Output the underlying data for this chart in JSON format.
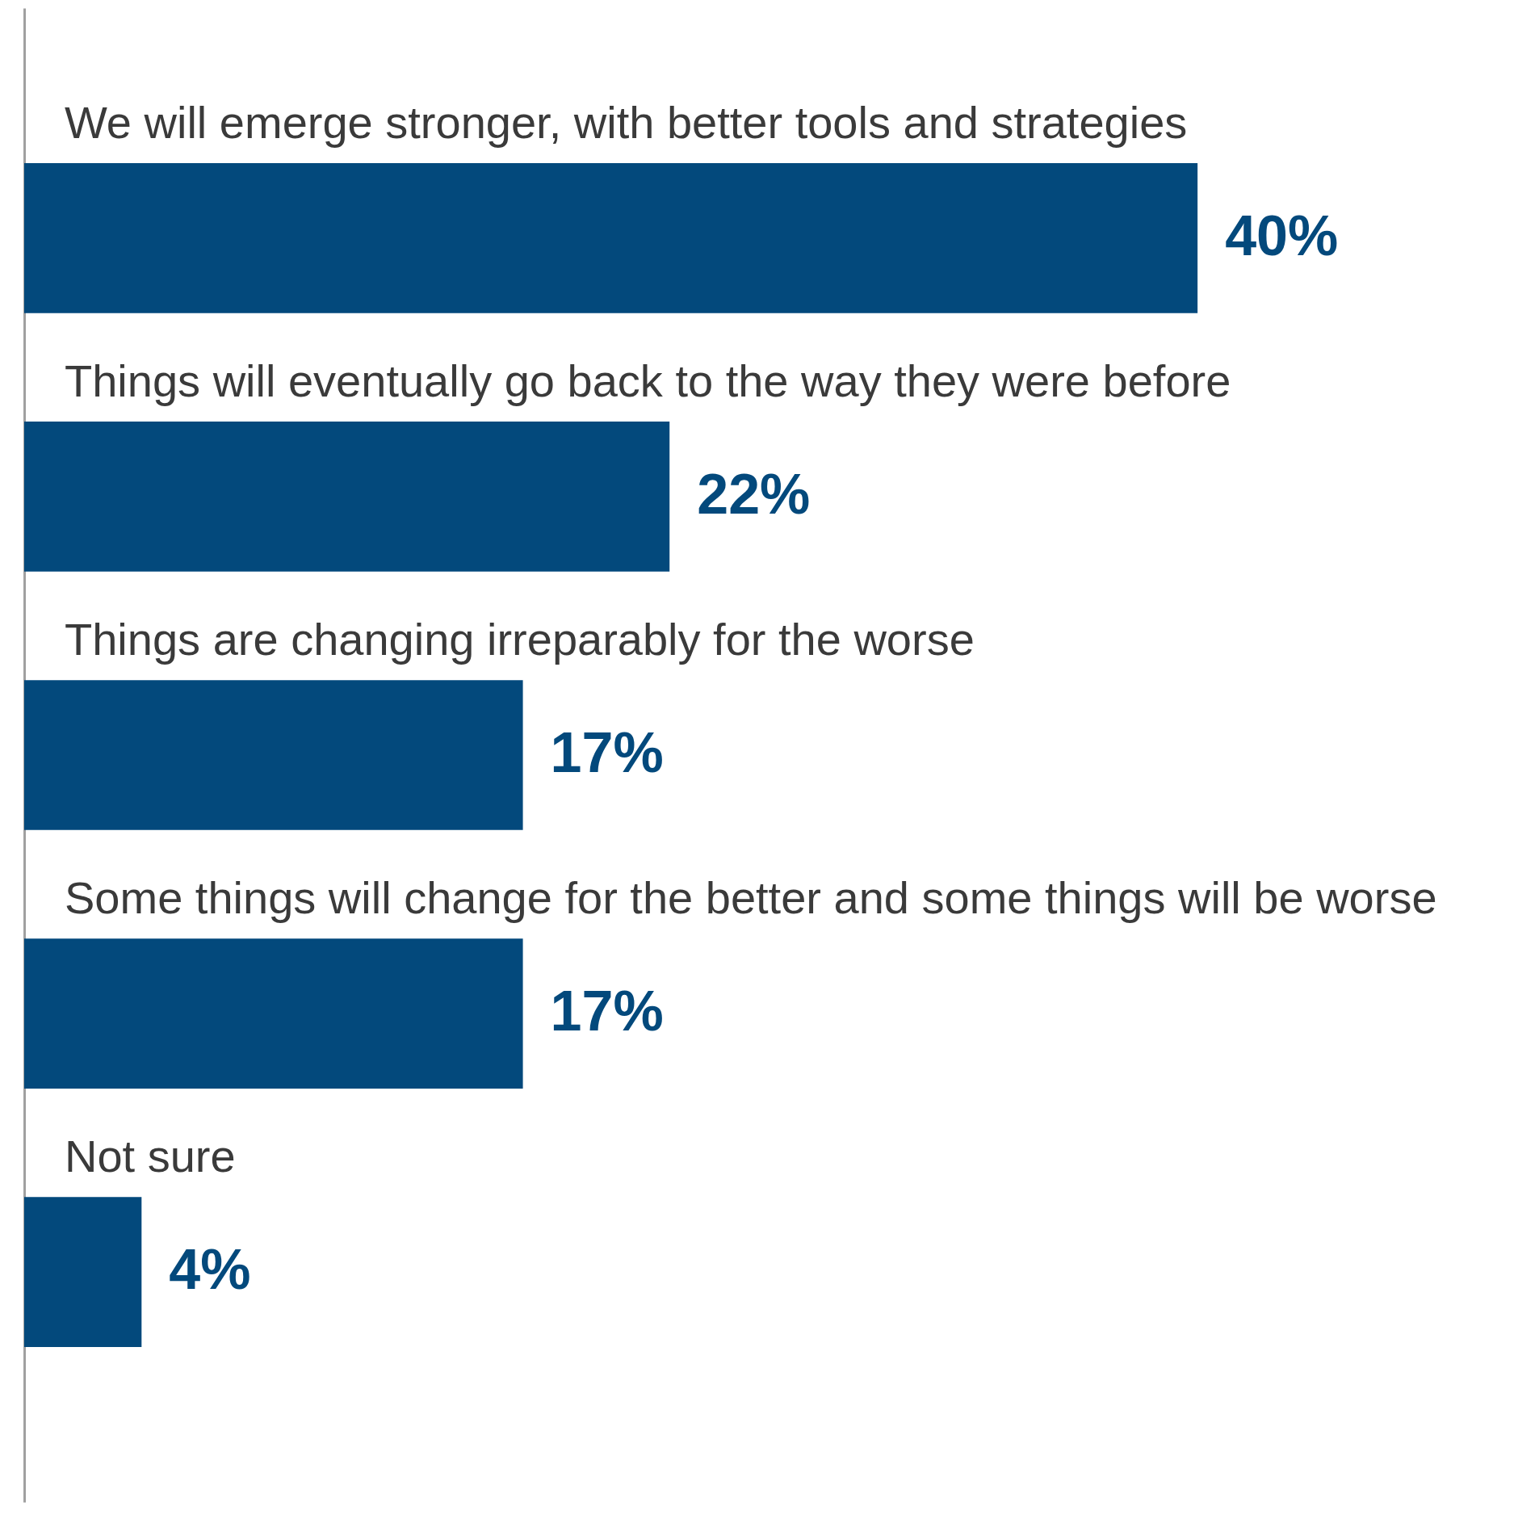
{
  "chart_data": {
    "type": "bar",
    "orientation": "horizontal",
    "categories": [
      "We will emerge stronger, with better tools and strategies",
      "Things will eventually go back to the way they were before",
      "Things are changing irreparably for the worse",
      "Some things will change for the better and some things will be worse",
      "Not sure"
    ],
    "values": [
      40,
      22,
      17,
      17,
      4
    ],
    "value_labels": [
      "40%",
      "22%",
      "17%",
      "17%",
      "4%"
    ],
    "color": "#03497c"
  }
}
